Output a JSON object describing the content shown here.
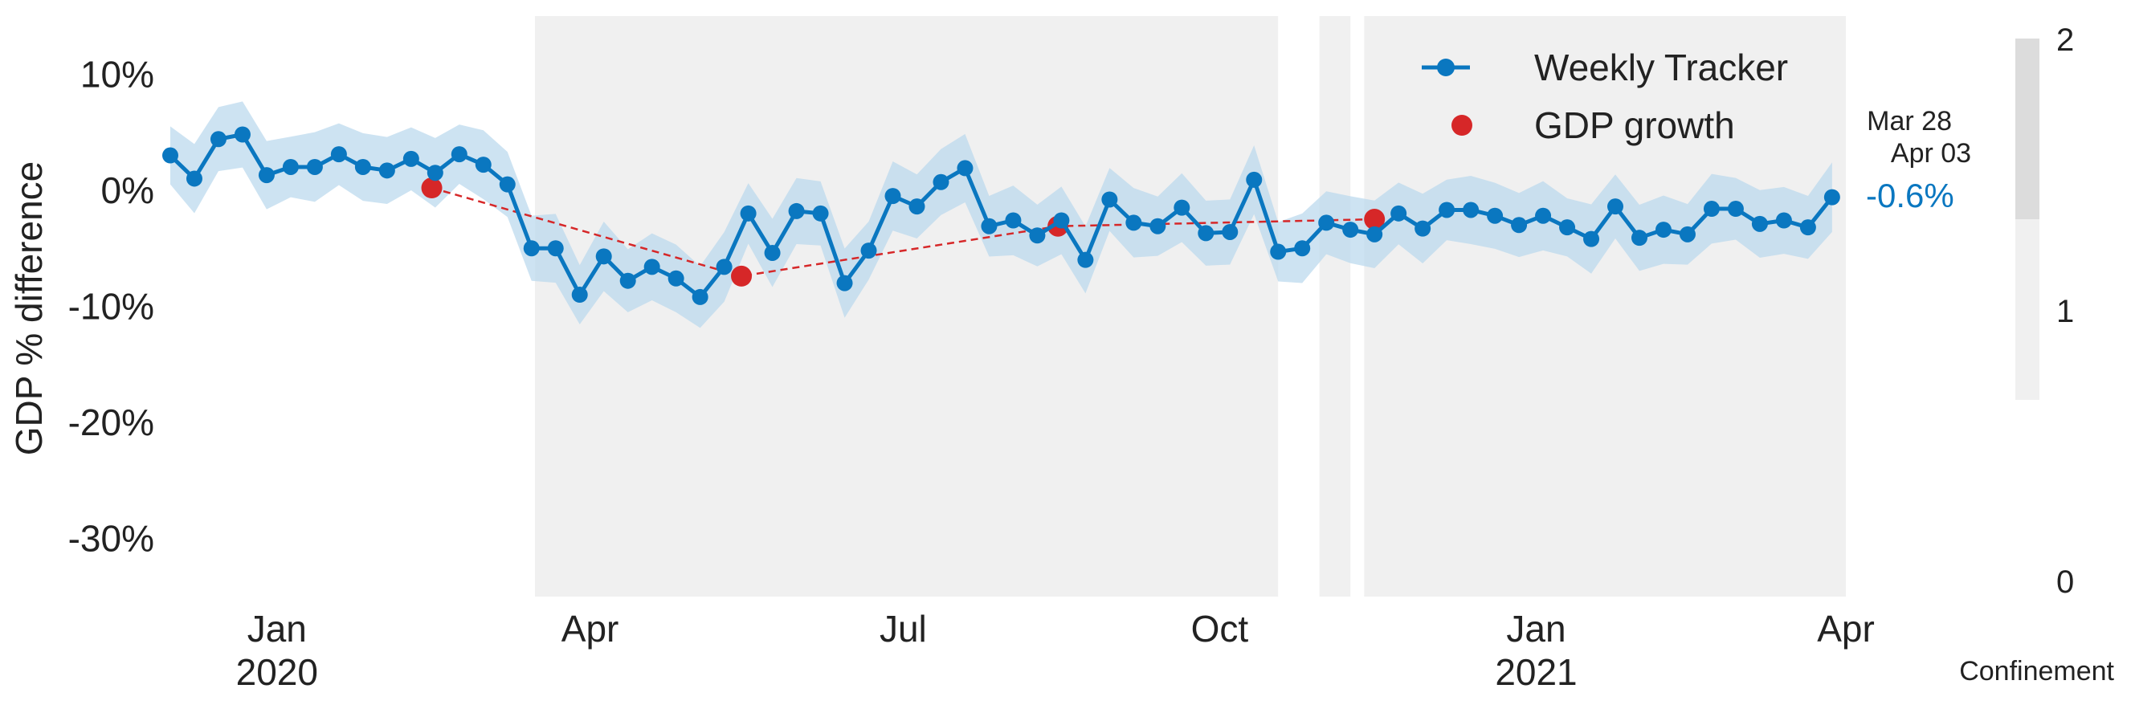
{
  "chart_data": {
    "type": "line",
    "ylabel": "GDP % difference",
    "ylim": [
      -35,
      15
    ],
    "y_ticks": [
      -30,
      -20,
      -10,
      0,
      10
    ],
    "y_tick_labels": [
      "-30%",
      "-20%",
      "-10%",
      "0%",
      "10%"
    ],
    "x_range": [
      "2019-12-01",
      "2021-04-01"
    ],
    "x_ticks": [
      {
        "date": "2020-01-01",
        "label": "Jan",
        "year": "2020"
      },
      {
        "date": "2020-04-01",
        "label": "Apr",
        "year": ""
      },
      {
        "date": "2020-07-01",
        "label": "Jul",
        "year": ""
      },
      {
        "date": "2020-10-01",
        "label": "Oct",
        "year": ""
      },
      {
        "date": "2021-01-01",
        "label": "Jan",
        "year": "2021"
      },
      {
        "date": "2021-04-01",
        "label": "Apr",
        "year": ""
      }
    ],
    "grid": false,
    "legend_position": "top-right",
    "series": [
      {
        "name": "Weekly Tracker",
        "color": "#0a77c0",
        "band_color": "#bcd9ee",
        "points": [
          {
            "date": "2019-12-01",
            "value": 3.0
          },
          {
            "date": "2019-12-08",
            "value": 1.0
          },
          {
            "date": "2019-12-15",
            "value": 4.4
          },
          {
            "date": "2019-12-22",
            "value": 4.8
          },
          {
            "date": "2019-12-29",
            "value": 1.3
          },
          {
            "date": "2020-01-05",
            "value": 2.0
          },
          {
            "date": "2020-01-12",
            "value": 2.0
          },
          {
            "date": "2020-01-19",
            "value": 3.1
          },
          {
            "date": "2020-01-26",
            "value": 2.0
          },
          {
            "date": "2020-02-02",
            "value": 1.7
          },
          {
            "date": "2020-02-09",
            "value": 2.7
          },
          {
            "date": "2020-02-16",
            "value": 1.5
          },
          {
            "date": "2020-02-23",
            "value": 3.1
          },
          {
            "date": "2020-03-01",
            "value": 2.2
          },
          {
            "date": "2020-03-08",
            "value": 0.5
          },
          {
            "date": "2020-03-15",
            "value": -5.0
          },
          {
            "date": "2020-03-22",
            "value": -5.0
          },
          {
            "date": "2020-03-29",
            "value": -9.0
          },
          {
            "date": "2020-04-05",
            "value": -5.7
          },
          {
            "date": "2020-04-12",
            "value": -7.8
          },
          {
            "date": "2020-04-19",
            "value": -6.6
          },
          {
            "date": "2020-04-26",
            "value": -7.6
          },
          {
            "date": "2020-05-03",
            "value": -9.2
          },
          {
            "date": "2020-05-10",
            "value": -6.6
          },
          {
            "date": "2020-05-17",
            "value": -2.0
          },
          {
            "date": "2020-05-24",
            "value": -5.4
          },
          {
            "date": "2020-05-31",
            "value": -1.8
          },
          {
            "date": "2020-06-07",
            "value": -2.0
          },
          {
            "date": "2020-06-14",
            "value": -8.0
          },
          {
            "date": "2020-06-21",
            "value": -5.2
          },
          {
            "date": "2020-06-28",
            "value": -0.5
          },
          {
            "date": "2020-07-05",
            "value": -1.4
          },
          {
            "date": "2020-07-12",
            "value": 0.7
          },
          {
            "date": "2020-07-19",
            "value": 1.9
          },
          {
            "date": "2020-07-26",
            "value": -3.1
          },
          {
            "date": "2020-08-02",
            "value": -2.6
          },
          {
            "date": "2020-08-09",
            "value": -3.9
          },
          {
            "date": "2020-08-16",
            "value": -2.6
          },
          {
            "date": "2020-08-23",
            "value": -6.0
          },
          {
            "date": "2020-08-30",
            "value": -0.8
          },
          {
            "date": "2020-09-06",
            "value": -2.8
          },
          {
            "date": "2020-09-13",
            "value": -3.1
          },
          {
            "date": "2020-09-20",
            "value": -1.5
          },
          {
            "date": "2020-09-27",
            "value": -3.7
          },
          {
            "date": "2020-10-04",
            "value": -3.6
          },
          {
            "date": "2020-10-11",
            "value": 0.9
          },
          {
            "date": "2020-10-18",
            "value": -5.3
          },
          {
            "date": "2020-10-25",
            "value": -5.0
          },
          {
            "date": "2020-11-01",
            "value": -2.8
          },
          {
            "date": "2020-11-08",
            "value": -3.4
          },
          {
            "date": "2020-11-15",
            "value": -3.8
          },
          {
            "date": "2020-11-22",
            "value": -2.0
          },
          {
            "date": "2020-11-29",
            "value": -3.3
          },
          {
            "date": "2020-12-06",
            "value": -1.7
          },
          {
            "date": "2020-12-13",
            "value": -1.7
          },
          {
            "date": "2020-12-20",
            "value": -2.2
          },
          {
            "date": "2020-12-27",
            "value": -3.0
          },
          {
            "date": "2021-01-03",
            "value": -2.2
          },
          {
            "date": "2021-01-10",
            "value": -3.2
          },
          {
            "date": "2021-01-17",
            "value": -4.2
          },
          {
            "date": "2021-01-24",
            "value": -1.4
          },
          {
            "date": "2021-01-31",
            "value": -4.1
          },
          {
            "date": "2021-02-07",
            "value": -3.4
          },
          {
            "date": "2021-02-14",
            "value": -3.8
          },
          {
            "date": "2021-02-21",
            "value": -1.6
          },
          {
            "date": "2021-02-28",
            "value": -1.6
          },
          {
            "date": "2021-03-07",
            "value": -2.9
          },
          {
            "date": "2021-03-14",
            "value": -2.6
          },
          {
            "date": "2021-03-21",
            "value": -3.2
          },
          {
            "date": "2021-03-28",
            "value": -0.6
          }
        ]
      },
      {
        "name": "GDP growth",
        "color": "#d62728",
        "line_style": "dashed",
        "points": [
          {
            "date": "2020-02-15",
            "value": 0.2
          },
          {
            "date": "2020-05-15",
            "value": -7.4
          },
          {
            "date": "2020-08-15",
            "value": -3.1
          },
          {
            "date": "2020-11-15",
            "value": -2.5
          }
        ]
      }
    ],
    "last_value_label": "-0.6%",
    "last_dates": [
      "Mar 28",
      "Apr 03"
    ],
    "confinement": {
      "label": "Confinement",
      "scale_ticks": [
        "0",
        "1",
        "2"
      ],
      "colors": {
        "level1": "#f0f0f0",
        "level2": "#dcdcdc"
      },
      "periods": [
        {
          "start": "2020-03-16",
          "end": "2020-10-18",
          "level": 1
        },
        {
          "start": "2020-10-30",
          "end": "2020-11-08",
          "level": 1
        },
        {
          "start": "2020-11-12",
          "end": "2021-04-01",
          "level": 1
        }
      ]
    }
  }
}
